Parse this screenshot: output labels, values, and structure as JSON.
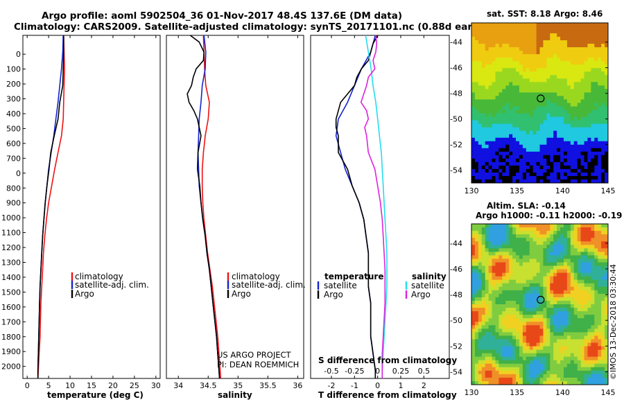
{
  "title_line1": "Argo profile: aoml 5902504_36 01-Nov-2017 48.4S 137.6E (DM data)",
  "title_line2": "Climatology: CARS2009. Satellite-adjusted climatology: synTS_20171101.nc (0.88d earlier)",
  "depth_ticks": [
    "0",
    "100",
    "200",
    "300",
    "400",
    "500",
    "600",
    "700",
    "0",
    "800",
    "900",
    "1000",
    "1100",
    "1200",
    "1300",
    "1400",
    "1500",
    "1600",
    "1700",
    "1800",
    "1900",
    "2000"
  ],
  "colors": {
    "climatology": "#ee1111",
    "satellite": "#1122cc",
    "argo": "#000000",
    "sal_sat": "#22ddee",
    "sal_argo": "#dd22dd"
  },
  "credit": [
    "US ARGO PROJECT",
    "PI: DEAN ROEMMICH"
  ],
  "side_stamp": "©IMOS 13-Dec-2018 03:30:44",
  "map_sst": {
    "title": "sat. SST: 8.18 Argo: 8.46",
    "lat_ticks": [
      "-44",
      "-46",
      "-48",
      "-50",
      "-52",
      "-54"
    ],
    "lon_ticks": [
      "130",
      "135",
      "140",
      "145"
    ],
    "marker": {
      "lon": 137.6,
      "lat": -48.4
    }
  },
  "map_sla": {
    "title1": "Altim. SLA: -0.14",
    "title2": "Argo h1000: -0.11 h2000: -0.19",
    "lat_ticks": [
      "-44",
      "-46",
      "-48",
      "-50",
      "-52",
      "-54"
    ],
    "lon_ticks": [
      "130",
      "135",
      "140",
      "145"
    ],
    "marker": {
      "lon": 137.6,
      "lat": -48.4
    }
  },
  "chart_data": [
    {
      "type": "line",
      "title": "",
      "xlabel": "temperature (deg C)",
      "ylabel": "depth (m)",
      "xlim": [
        -1,
        31
      ],
      "ylim": [
        2050,
        0
      ],
      "x_ticks": [
        "0",
        "5",
        "10",
        "15",
        "20",
        "25",
        "30"
      ],
      "legend": [
        "climatology",
        "satellite-adj. clim.",
        "Argo"
      ],
      "series": [
        {
          "name": "climatology",
          "depth": [
            0,
            100,
            200,
            300,
            400,
            500,
            600,
            700,
            800,
            900,
            1000,
            1100,
            1200,
            1300,
            1400,
            1500,
            1600,
            1700,
            1800,
            1900,
            2000,
            2050
          ],
          "values": [
            8.5,
            8.6,
            8.7,
            8.6,
            8.5,
            8.4,
            8.0,
            7.2,
            6.4,
            5.7,
            5.0,
            4.5,
            4.1,
            3.8,
            3.6,
            3.4,
            3.2,
            3.1,
            3.0,
            2.8,
            2.6,
            2.5
          ]
        },
        {
          "name": "satellite-adj. clim.",
          "depth": [
            0,
            100,
            200,
            300,
            400,
            500,
            600,
            700,
            800,
            900,
            1000,
            1100,
            1200,
            1300,
            1400,
            1500,
            1600,
            1700,
            1800,
            1900,
            2000,
            2050
          ],
          "values": [
            8.4,
            8.3,
            8.0,
            7.6,
            7.2,
            6.7,
            6.2,
            5.6,
            5.0,
            4.6,
            4.2,
            3.9,
            3.6,
            3.4,
            3.2,
            3.0,
            2.9,
            2.8,
            2.7,
            2.6,
            2.5,
            2.5
          ]
        },
        {
          "name": "Argo",
          "depth": [
            0,
            100,
            200,
            300,
            400,
            500,
            600,
            700,
            800,
            900,
            1000,
            1100,
            1200,
            1300,
            1400,
            1500,
            1600,
            1700,
            1800,
            1900,
            2000,
            2050
          ],
          "values": [
            8.5,
            8.5,
            8.4,
            8.3,
            7.6,
            7.2,
            6.3,
            5.5,
            5.1,
            4.6,
            4.2,
            3.9,
            3.6,
            3.4,
            3.2,
            3.0,
            2.9,
            2.8,
            2.7,
            2.6,
            2.5,
            2.5
          ]
        }
      ]
    },
    {
      "type": "line",
      "xlabel": "salinity",
      "ylabel": "",
      "xlim": [
        33.8,
        36.1
      ],
      "ylim": [
        2050,
        0
      ],
      "x_ticks": [
        "34",
        "34.5",
        "35",
        "35.5",
        "36"
      ],
      "legend": [
        "climatology",
        "satellite-adj. clim.",
        "Argo"
      ],
      "series": [
        {
          "name": "climatology",
          "depth": [
            0,
            100,
            200,
            300,
            400,
            500,
            600,
            700,
            800,
            900,
            1000,
            1100,
            1200,
            1300,
            1400,
            1500,
            1600,
            1700,
            1800,
            1900,
            2000,
            2050
          ],
          "values": [
            34.42,
            34.43,
            34.44,
            34.46,
            34.52,
            34.5,
            34.45,
            34.42,
            34.4,
            34.4,
            34.41,
            34.43,
            34.46,
            34.49,
            34.53,
            34.57,
            34.6,
            34.63,
            34.66,
            34.68,
            34.7,
            34.71
          ]
        },
        {
          "name": "satellite-adj. clim.",
          "depth": [
            0,
            100,
            200,
            300,
            400,
            500,
            600,
            700,
            800,
            900,
            1000,
            1100,
            1200,
            1300,
            1400,
            1500,
            1600,
            1700,
            1800,
            1900,
            2000,
            2050
          ],
          "values": [
            34.43,
            34.46,
            34.45,
            34.4,
            34.38,
            34.35,
            34.34,
            34.33,
            34.34,
            34.35,
            34.38,
            34.41,
            34.45,
            34.48,
            34.52,
            34.55,
            34.58,
            34.61,
            34.64,
            34.66,
            34.68,
            34.69
          ]
        },
        {
          "name": "Argo",
          "depth": [
            0,
            40,
            100,
            150,
            200,
            250,
            300,
            350,
            400,
            450,
            500,
            550,
            600,
            700,
            800,
            900,
            1000,
            1100,
            1200,
            1300,
            1400,
            1500,
            1600,
            1700,
            1800,
            1900,
            2000,
            2050
          ],
          "values": [
            34.2,
            34.35,
            34.43,
            34.42,
            34.3,
            34.25,
            34.22,
            34.15,
            34.18,
            34.26,
            34.32,
            34.35,
            34.38,
            34.33,
            34.32,
            34.36,
            34.38,
            34.41,
            34.45,
            34.48,
            34.52,
            34.55,
            34.58,
            34.61,
            34.64,
            34.66,
            34.68,
            34.69
          ]
        }
      ]
    },
    {
      "type": "line",
      "xlabel": "T difference from climatology",
      "top_xlabel": "S difference from climatology",
      "xlim": [
        -2.9,
        3.1
      ],
      "ylim": [
        2050,
        0
      ],
      "x_ticks": [
        "-2",
        "-1",
        "0",
        "1",
        "2"
      ],
      "top_ticks": [
        "-0.5",
        "-0.25",
        "0",
        "0.25",
        "0.5"
      ],
      "legend_left_title": "temperature",
      "legend_right_title": "salinity",
      "legend_left": [
        "satellite",
        "Argo"
      ],
      "legend_right": [
        "satellite",
        "Argo"
      ],
      "series": [
        {
          "name": "T satellite",
          "depth": [
            0,
            100,
            200,
            300,
            400,
            500,
            600,
            700,
            800,
            900,
            1000,
            1100,
            1200,
            1300,
            1400,
            1500,
            1600,
            1700,
            1800,
            1900,
            2000,
            2050
          ],
          "values": [
            -0.1,
            -0.3,
            -0.7,
            -1.0,
            -1.3,
            -1.7,
            -1.8,
            -1.6,
            -1.4,
            -1.1,
            -0.8,
            -0.6,
            -0.5,
            -0.4,
            -0.4,
            -0.4,
            -0.3,
            -0.3,
            -0.3,
            -0.2,
            -0.1,
            -0.1
          ]
        },
        {
          "name": "T Argo",
          "depth": [
            0,
            50,
            100,
            150,
            200,
            250,
            300,
            350,
            400,
            450,
            500,
            550,
            600,
            700,
            800,
            900,
            1000,
            1100,
            1200,
            1300,
            1400,
            1500,
            1600,
            1700,
            1800,
            1900,
            2000,
            2050
          ],
          "values": [
            0.0,
            -0.2,
            -0.3,
            -0.4,
            -0.7,
            -0.9,
            -1.0,
            -1.3,
            -1.6,
            -1.7,
            -1.8,
            -1.8,
            -1.7,
            -1.7,
            -1.3,
            -1.1,
            -0.8,
            -0.6,
            -0.5,
            -0.4,
            -0.4,
            -0.4,
            -0.3,
            -0.3,
            -0.3,
            -0.2,
            -0.1,
            -0.1
          ]
        },
        {
          "name": "S satellite",
          "depth": [
            0,
            100,
            200,
            300,
            400,
            500,
            600,
            700,
            800,
            900,
            1000,
            1100,
            1200,
            1300,
            1400,
            1500,
            1600,
            1700,
            1800,
            1900,
            2000,
            2050
          ],
          "values": [
            -0.13,
            -0.1,
            -0.07,
            -0.05,
            -0.02,
            0.0,
            0.02,
            0.04,
            0.05,
            0.06,
            0.07,
            0.08,
            0.09,
            0.1,
            0.1,
            0.1,
            0.09,
            0.08,
            0.07,
            0.06,
            0.05,
            0.05
          ]
        },
        {
          "name": "S Argo",
          "depth": [
            0,
            50,
            100,
            150,
            200,
            250,
            300,
            350,
            400,
            450,
            500,
            550,
            600,
            700,
            800,
            900,
            1000,
            1100,
            1200,
            1300,
            1400,
            1500,
            1600,
            1700,
            1800,
            1900,
            2000,
            2050
          ],
          "values": [
            -0.02,
            -0.01,
            -0.02,
            -0.05,
            -0.03,
            -0.1,
            -0.12,
            -0.15,
            -0.18,
            -0.12,
            -0.1,
            -0.14,
            -0.12,
            -0.1,
            -0.03,
            0.0,
            0.03,
            0.05,
            0.06,
            0.07,
            0.08,
            0.08,
            0.08,
            0.07,
            0.06,
            0.05,
            0.05,
            0.05
          ]
        }
      ]
    }
  ]
}
